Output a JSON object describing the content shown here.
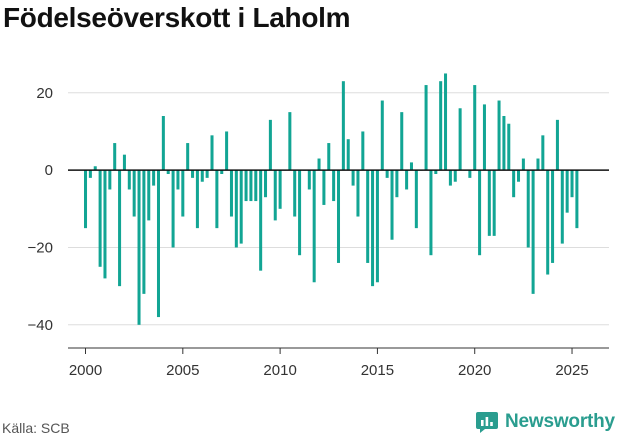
{
  "title": "Födelseöverskott i Laholm",
  "source": "Källa: SCB",
  "brand": {
    "name": "Newsworthy",
    "icon": "newsworthy-logo-icon",
    "color": "#2a9d8f"
  },
  "chart_data": {
    "type": "bar",
    "title": "Födelseöverskott i Laholm",
    "xlabel": "",
    "ylabel": "",
    "bar_color": "#12a594",
    "grid": "horizontal",
    "xlim": [
      1999.1,
      2026.9
    ],
    "ylim": [
      -46,
      29
    ],
    "xticks": [
      2000,
      2005,
      2010,
      2015,
      2020,
      2025
    ],
    "yticks": [
      20,
      0,
      -20,
      -40
    ],
    "ytick_labels": [
      "20",
      "0",
      "−20",
      "−40"
    ],
    "x": [
      2000.0,
      2000.25,
      2000.5,
      2000.75,
      2001.0,
      2001.25,
      2001.5,
      2001.75,
      2002.0,
      2002.25,
      2002.5,
      2002.75,
      2003.0,
      2003.25,
      2003.5,
      2003.75,
      2004.0,
      2004.25,
      2004.5,
      2004.75,
      2005.0,
      2005.25,
      2005.5,
      2005.75,
      2006.0,
      2006.25,
      2006.5,
      2006.75,
      2007.0,
      2007.25,
      2007.5,
      2007.75,
      2008.0,
      2008.25,
      2008.5,
      2008.75,
      2009.0,
      2009.25,
      2009.5,
      2009.75,
      2010.0,
      2010.25,
      2010.5,
      2010.75,
      2011.0,
      2011.25,
      2011.5,
      2011.75,
      2012.0,
      2012.25,
      2012.5,
      2012.75,
      2013.0,
      2013.25,
      2013.5,
      2013.75,
      2014.0,
      2014.25,
      2014.5,
      2014.75,
      2015.0,
      2015.25,
      2015.5,
      2015.75,
      2016.0,
      2016.25,
      2016.5,
      2016.75,
      2017.0,
      2017.25,
      2017.5,
      2017.75,
      2018.0,
      2018.25,
      2018.5,
      2018.75,
      2019.0,
      2019.25,
      2019.5,
      2019.75,
      2020.0,
      2020.25,
      2020.5,
      2020.75,
      2021.0,
      2021.25,
      2021.5,
      2021.75,
      2022.0,
      2022.25,
      2022.5,
      2022.75,
      2023.0,
      2023.25,
      2023.5,
      2023.75,
      2024.0,
      2024.25,
      2024.5,
      2024.75,
      2025.0,
      2025.25
    ],
    "values": [
      -15,
      -2,
      1,
      -25,
      -28,
      -5,
      7,
      -30,
      4,
      -5,
      -12,
      -40,
      -32,
      -13,
      -4,
      -38,
      14,
      -1,
      -20,
      -5,
      -12,
      7,
      -2,
      -15,
      -3,
      -2,
      9,
      -15,
      -1,
      10,
      -12,
      -20,
      -19,
      -8,
      -8,
      -8,
      -26,
      -7,
      13,
      -13,
      -10,
      0,
      15,
      -12,
      -22,
      0,
      -5,
      -29,
      3,
      -9,
      7,
      -8,
      -24,
      23,
      8,
      -4,
      -12,
      10,
      -24,
      -30,
      -29,
      18,
      -2,
      -18,
      -7,
      15,
      -5,
      2,
      -15,
      0,
      22,
      -22,
      -1,
      23,
      25,
      -4,
      -3,
      16,
      0,
      -2,
      22,
      -22,
      17,
      -17,
      -17,
      18,
      14,
      12,
      -7,
      -3,
      3,
      -20,
      -32,
      3,
      9,
      -27,
      -24,
      13,
      -19,
      -11,
      -7,
      -15
    ]
  }
}
